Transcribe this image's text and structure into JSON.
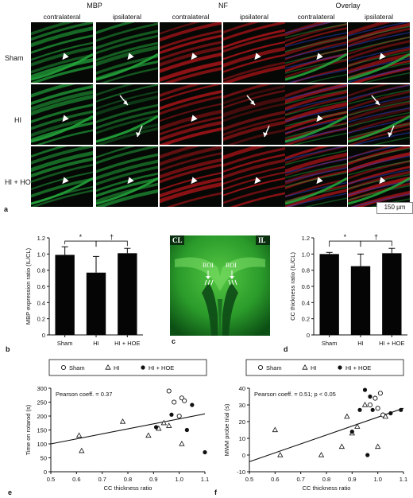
{
  "panel_a": {
    "label": "a",
    "groups": [
      "MBP",
      "NF",
      "Overlay"
    ],
    "columns": [
      "contralateral",
      "ipsilateral",
      "contralateral",
      "ipsilateral",
      "contralateral",
      "ipsilateral"
    ],
    "rows": [
      "Sham",
      "HI",
      "HI + HOE"
    ],
    "scale_bar": "150 µm",
    "colors": {
      "mbp": "#22a33a",
      "nf": "#c4161c",
      "overlay_blue": "#2a3fc9"
    }
  },
  "chart_data": [
    {
      "panel": "b",
      "type": "bar",
      "ylabel": "MBP expression ratio (IL/CL)",
      "categories": [
        "Sham",
        "HI",
        "HI + HOE"
      ],
      "values": [
        0.99,
        0.77,
        1.01
      ],
      "error_up": [
        0.1,
        0.2,
        0.06
      ],
      "ylim": [
        0,
        1.2
      ],
      "yticks": [
        "0",
        "0.2",
        "0.4",
        "0.6",
        "0.8",
        "1.0",
        "1.2"
      ],
      "sig_left": "*",
      "sig_right": "†"
    },
    {
      "panel": "d",
      "type": "bar",
      "ylabel": "CC thickness ratio (IL/CL)",
      "categories": [
        "Sham",
        "HI",
        "HI + HOE"
      ],
      "values": [
        1.0,
        0.85,
        1.01
      ],
      "error_up": [
        0.02,
        0.15,
        0.06
      ],
      "ylim": [
        0,
        1.2
      ],
      "yticks": [
        "0",
        "0.2",
        "0.4",
        "0.6",
        "0.8",
        "1.0",
        "1.2"
      ],
      "sig_left": "*",
      "sig_right": "†"
    },
    {
      "panel": "e",
      "type": "scatter",
      "xlabel": "CC thickness ratio",
      "ylabel": "Time on rotarod (s)",
      "annotation": "Pearson coeff. = 0.37",
      "xlim": [
        0.5,
        1.1
      ],
      "ylim": [
        0,
        300
      ],
      "xticks": [
        "0.5",
        "0.6",
        "0.7",
        "0.8",
        "0.9",
        "1.0",
        "1.1"
      ],
      "yticks": [
        "0",
        "50",
        "100",
        "150",
        "200",
        "250",
        "300"
      ],
      "legend": [
        "Sham",
        "HI",
        "HI + HOE"
      ],
      "series": [
        {
          "name": "Sham",
          "marker": "open-circle",
          "x": [
            0.96,
            0.98,
            1.0,
            1.01,
            1.02
          ],
          "y": [
            290,
            250,
            200,
            265,
            255
          ]
        },
        {
          "name": "HI",
          "marker": "triangle",
          "x": [
            0.61,
            0.62,
            0.78,
            0.88,
            0.92,
            0.94,
            0.96,
            1.01
          ],
          "y": [
            130,
            75,
            180,
            130,
            155,
            175,
            165,
            100
          ]
        },
        {
          "name": "HI + HOE",
          "marker": "filled-circle",
          "x": [
            0.91,
            0.97,
            1.03,
            1.05,
            1.1
          ],
          "y": [
            160,
            205,
            150,
            240,
            70
          ]
        }
      ],
      "trend": {
        "x": [
          0.5,
          1.1
        ],
        "y": [
          100,
          208
        ]
      }
    },
    {
      "panel": "f",
      "type": "scatter",
      "xlabel": "CC thickness ratio",
      "ylabel": "MWM probe trial (s)",
      "annotation": "Pearson coeff. = 0.51; p < 0.05",
      "xlim": [
        0.5,
        1.1
      ],
      "ylim": [
        -10,
        40
      ],
      "xticks": [
        "0.5",
        "0.6",
        "0.7",
        "0.8",
        "0.9",
        "1.0",
        "1.1"
      ],
      "yticks": [
        "-10",
        "0",
        "10",
        "20",
        "30",
        "40"
      ],
      "legend": [
        "Sham",
        "HI",
        "HI + HOE"
      ],
      "series": [
        {
          "name": "Sham",
          "marker": "open-circle",
          "x": [
            0.97,
            0.99,
            1.0,
            1.01,
            1.02
          ],
          "y": [
            30,
            34,
            28,
            37,
            24
          ]
        },
        {
          "name": "HI",
          "marker": "triangle",
          "x": [
            0.6,
            0.62,
            0.78,
            0.86,
            0.88,
            0.9,
            0.92,
            0.95,
            1.0,
            1.03
          ],
          "y": [
            15,
            0,
            0,
            5,
            23,
            13,
            17,
            30,
            5,
            23
          ]
        },
        {
          "name": "HI + HOE",
          "marker": "filled-circle",
          "x": [
            0.9,
            0.93,
            0.95,
            0.96,
            0.97,
            0.98,
            1.05,
            1.09
          ],
          "y": [
            14,
            27,
            39,
            0,
            35,
            27,
            25,
            27
          ]
        }
      ],
      "trend": {
        "x": [
          0.5,
          1.1
        ],
        "y": [
          -4,
          28
        ]
      }
    }
  ],
  "panel_c": {
    "label": "c",
    "left_tag": "CL",
    "right_tag": "IL",
    "roi_left": "ROI",
    "roi_right": "ROI"
  },
  "panel_labels": {
    "b": "b",
    "d": "d",
    "e": "e",
    "f": "f"
  }
}
